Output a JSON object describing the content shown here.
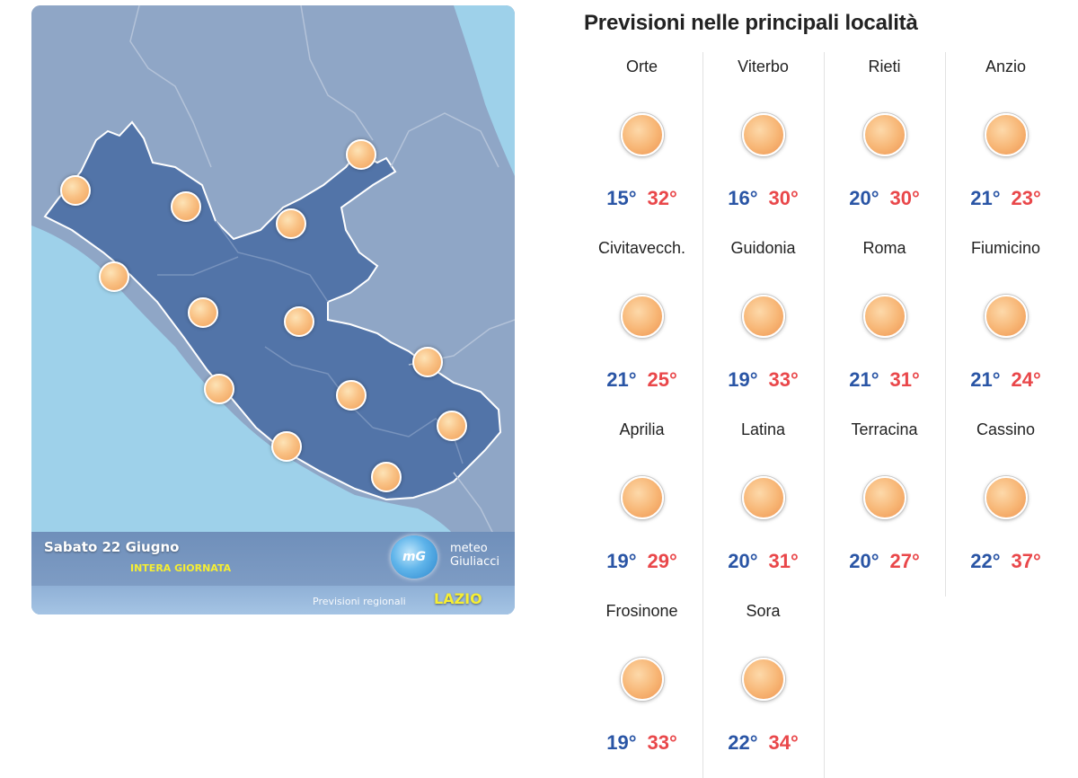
{
  "map": {
    "date": "Sabato 22 Giugno",
    "period": "INTERA GIORNATA",
    "brand": {
      "logo": "mG",
      "line1": "meteo",
      "line2": "Giuliacci"
    },
    "regional_label": "Previsioni regionali",
    "region": "LAZIO",
    "colors": {
      "sea": "#9ed1ea",
      "land": "#8fa6c6",
      "region": "#5274a8",
      "sun": "#f7b574"
    },
    "weather_icons": [
      "sun-icon",
      "sun-icon",
      "sun-icon",
      "sun-icon",
      "sun-icon",
      "sun-icon",
      "sun-icon",
      "sun-icon",
      "sun-icon",
      "sun-icon",
      "sun-icon",
      "sun-icon",
      "sun-icon",
      "sun-icon"
    ]
  },
  "forecast": {
    "title": "Previsioni nelle principali località",
    "colors": {
      "min": "#2a55a5",
      "max": "#e9474a"
    },
    "cities": [
      {
        "name": "Orte",
        "icon": "sun-icon",
        "min": "15°",
        "max": "32°"
      },
      {
        "name": "Viterbo",
        "icon": "sun-icon",
        "min": "16°",
        "max": "30°"
      },
      {
        "name": "Rieti",
        "icon": "sun-icon",
        "min": "20°",
        "max": "30°"
      },
      {
        "name": "Anzio",
        "icon": "sun-icon",
        "min": "21°",
        "max": "23°"
      },
      {
        "name": "Civitavecch.",
        "icon": "sun-icon",
        "min": "21°",
        "max": "25°"
      },
      {
        "name": "Guidonia",
        "icon": "sun-icon",
        "min": "19°",
        "max": "33°"
      },
      {
        "name": "Roma",
        "icon": "sun-icon",
        "min": "21°",
        "max": "31°"
      },
      {
        "name": "Fiumicino",
        "icon": "sun-icon",
        "min": "21°",
        "max": "24°"
      },
      {
        "name": "Aprilia",
        "icon": "sun-icon",
        "min": "19°",
        "max": "29°"
      },
      {
        "name": "Latina",
        "icon": "sun-icon",
        "min": "20°",
        "max": "31°"
      },
      {
        "name": "Terracina",
        "icon": "sun-icon",
        "min": "20°",
        "max": "27°"
      },
      {
        "name": "Cassino",
        "icon": "sun-icon",
        "min": "22°",
        "max": "37°"
      },
      {
        "name": "Frosinone",
        "icon": "sun-icon",
        "min": "19°",
        "max": "33°"
      },
      {
        "name": "Sora",
        "icon": "sun-icon",
        "min": "22°",
        "max": "34°"
      }
    ]
  }
}
